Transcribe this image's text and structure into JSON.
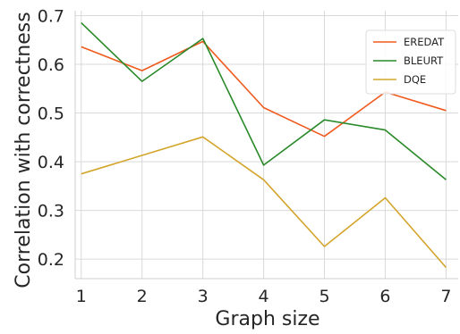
{
  "chart_data": {
    "type": "line",
    "title": "",
    "xlabel": "Graph size",
    "ylabel": "Correlation with correctness",
    "x": [
      1,
      2,
      3,
      4,
      5,
      6,
      7
    ],
    "xlim": [
      0.9,
      7.2
    ],
    "ylim": [
      0.16,
      0.71
    ],
    "yticks": [
      0.2,
      0.3,
      0.4,
      0.5,
      0.6,
      0.7
    ],
    "ytick_labels": [
      "0.2",
      "0.3",
      "0.4",
      "0.5",
      "0.6",
      "0.7"
    ],
    "xticks": [
      1,
      2,
      3,
      4,
      5,
      6,
      7
    ],
    "xtick_labels": [
      "1",
      "2",
      "3",
      "4",
      "5",
      "6",
      "7"
    ],
    "grid": true,
    "legend_position": "top-right",
    "series": [
      {
        "name": "EREDAT",
        "color": "#f05a1e",
        "values": [
          0.636,
          0.587,
          0.647,
          0.511,
          0.452,
          0.543,
          0.505
        ]
      },
      {
        "name": "BLEURT",
        "color": "#2a8a2a",
        "values": [
          0.685,
          0.565,
          0.653,
          0.393,
          0.486,
          0.465,
          0.363
        ]
      },
      {
        "name": "DQE",
        "color": "#d4a52c",
        "values": [
          0.375,
          0.413,
          0.451,
          0.363,
          0.226,
          0.326,
          0.183
        ]
      }
    ]
  }
}
